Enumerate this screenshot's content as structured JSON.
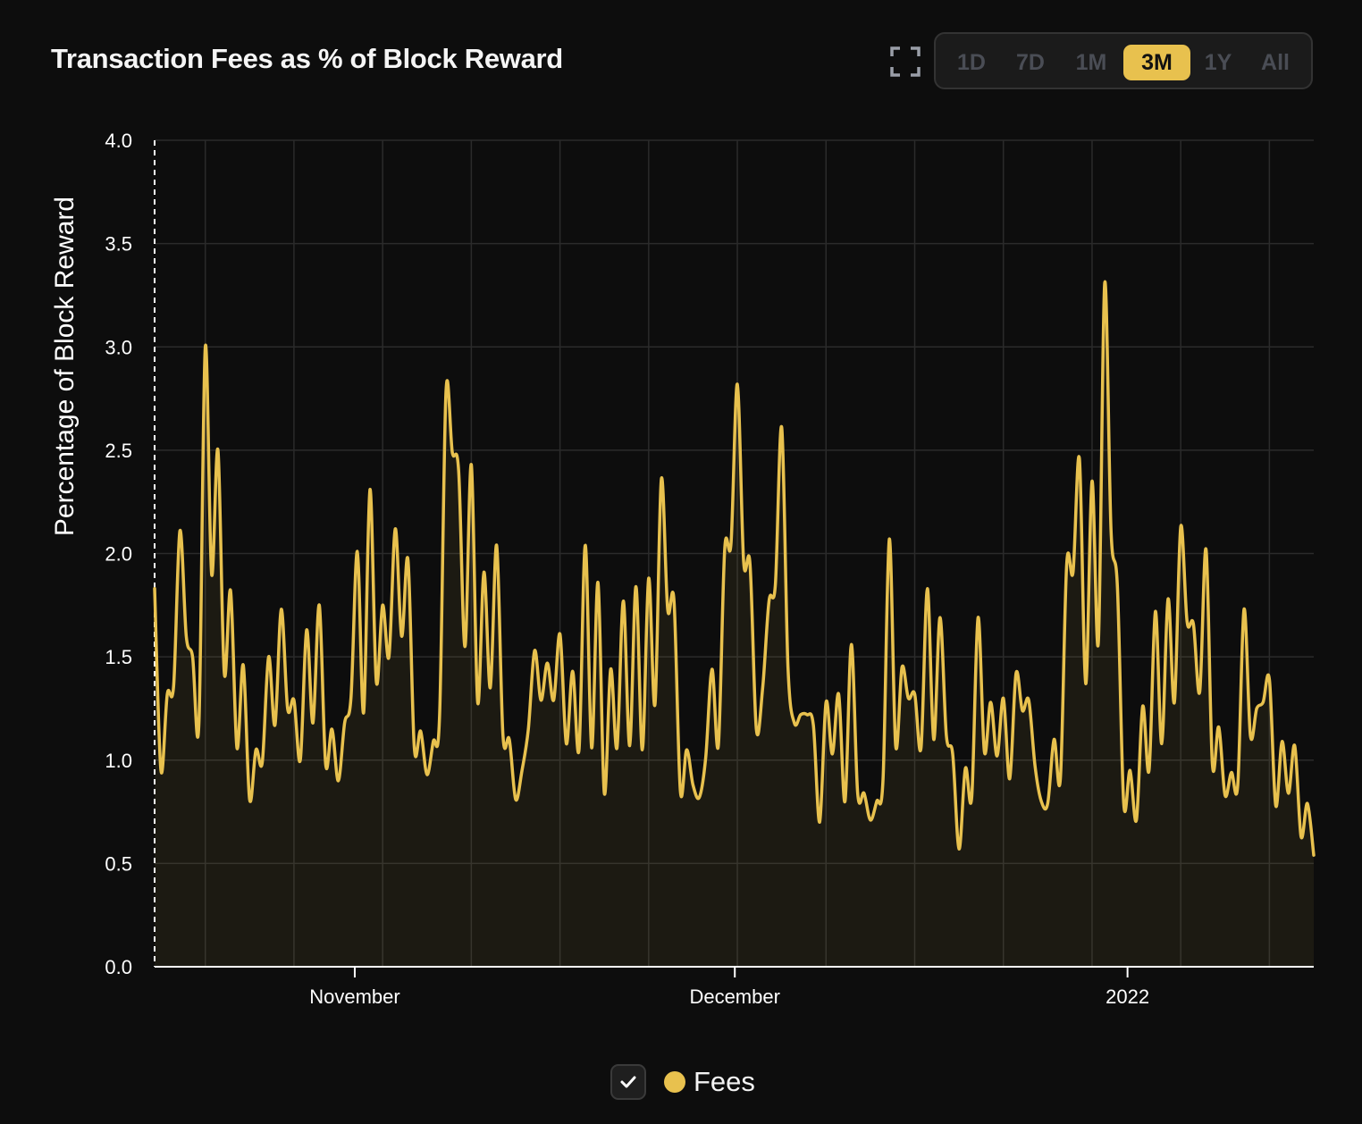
{
  "header": {
    "title": "Transaction Fees as % of Block Reward",
    "expand_icon": "expand-icon"
  },
  "range_buttons": [
    {
      "label": "1D",
      "active": false
    },
    {
      "label": "7D",
      "active": false
    },
    {
      "label": "1M",
      "active": false
    },
    {
      "label": "3M",
      "active": true
    },
    {
      "label": "1Y",
      "active": false
    },
    {
      "label": "All",
      "active": false
    }
  ],
  "colors": {
    "background": "#0d0d0d",
    "accent": "#e8c14e",
    "grid": "#2b2b2b",
    "axis": "#ffffff",
    "inactive_text": "#4a4d55"
  },
  "legend": {
    "check_icon": "check-icon",
    "series_label": "Fees"
  },
  "chart_data": {
    "type": "area",
    "title": "Transaction Fees as % of Block Reward",
    "xlabel": "",
    "ylabel": "Percentage of Block Reward",
    "ylim": [
      0,
      4
    ],
    "yticks": [
      "0.0",
      "0.5",
      "1.0",
      "1.5",
      "2.0",
      "2.5",
      "3.0",
      "3.5",
      "4.0"
    ],
    "x_range_days": [
      0,
      91.5
    ],
    "xticks": [
      {
        "label": "November",
        "day": 15.8
      },
      {
        "label": "December",
        "day": 45.8
      },
      {
        "label": "2022",
        "day": 76.8
      }
    ],
    "grid": true,
    "legend": "bottom-center",
    "series": [
      {
        "name": "Fees",
        "x_unit": "days since first sample",
        "x": [
          0,
          0.5,
          1,
          1.5,
          2,
          2.5,
          3,
          3.5,
          4,
          4.5,
          5,
          5.5,
          6,
          6.5,
          7,
          7.5,
          8,
          8.5,
          9,
          9.5,
          10,
          10.5,
          11,
          11.5,
          12,
          12.5,
          13,
          13.5,
          14,
          14.5,
          15,
          15.5,
          16,
          16.5,
          17,
          17.5,
          18,
          18.5,
          19,
          19.5,
          20,
          20.5,
          21,
          21.5,
          22,
          22.5,
          23,
          23.5,
          24,
          24.5,
          25,
          25.5,
          26,
          26.5,
          27,
          27.5,
          28,
          28.5,
          29,
          29.5,
          30,
          30.5,
          31,
          31.5,
          32,
          32.5,
          33,
          33.5,
          34,
          34.5,
          35,
          35.5,
          36,
          36.5,
          37,
          37.5,
          38,
          38.5,
          39,
          39.5,
          40,
          40.5,
          41,
          41.5,
          42,
          42.5,
          43,
          43.5,
          44,
          44.5,
          45,
          45.5,
          46,
          46.5,
          47,
          47.5,
          48,
          48.5,
          49,
          49.5,
          50,
          50.5,
          51,
          51.5,
          52,
          52.5,
          53,
          53.5,
          54,
          54.5,
          55,
          55.5,
          56,
          56.5,
          57,
          57.5,
          58,
          58.5,
          59,
          59.5,
          60,
          60.5,
          61,
          61.5,
          62,
          62.5,
          63,
          63.5,
          64,
          64.5,
          65,
          65.5,
          66,
          66.5,
          67,
          67.5,
          68,
          68.5,
          69,
          69.5,
          70,
          70.5,
          71,
          71.5,
          72,
          72.5,
          73,
          73.5,
          74,
          74.5,
          75,
          75.5,
          76,
          76.5,
          77,
          77.5,
          78,
          78.5,
          79,
          79.5,
          80,
          80.5,
          81,
          81.5,
          82,
          82.5,
          83,
          83.5,
          84,
          84.5,
          85,
          85.5,
          86,
          86.5,
          87,
          87.5,
          88,
          88.5,
          89,
          89.5,
          90,
          90.5,
          91,
          91.5
        ],
        "y": [
          1.83,
          0.95,
          1.32,
          1.36,
          2.11,
          1.6,
          1.5,
          1.18,
          3.0,
          1.9,
          2.5,
          1.42,
          1.82,
          1.06,
          1.46,
          0.81,
          1.05,
          0.99,
          1.5,
          1.17,
          1.73,
          1.25,
          1.29,
          1.0,
          1.63,
          1.18,
          1.75,
          0.98,
          1.15,
          0.9,
          1.18,
          1.3,
          2.01,
          1.23,
          2.31,
          1.38,
          1.75,
          1.5,
          2.12,
          1.6,
          1.97,
          1.06,
          1.14,
          0.93,
          1.09,
          1.22,
          2.78,
          2.49,
          2.4,
          1.55,
          2.43,
          1.28,
          1.91,
          1.35,
          2.04,
          1.12,
          1.1,
          0.81,
          0.95,
          1.15,
          1.53,
          1.29,
          1.47,
          1.29,
          1.61,
          1.08,
          1.43,
          1.05,
          2.04,
          1.06,
          1.86,
          0.84,
          1.44,
          1.06,
          1.77,
          1.07,
          1.84,
          1.05,
          1.88,
          1.27,
          2.36,
          1.73,
          1.77,
          0.85,
          1.05,
          0.88,
          0.82,
          1.01,
          1.44,
          1.07,
          2.02,
          2.05,
          2.82,
          1.96,
          1.95,
          1.15,
          1.35,
          1.77,
          1.85,
          2.61,
          1.45,
          1.18,
          1.22,
          1.22,
          1.17,
          0.7,
          1.28,
          1.03,
          1.32,
          0.8,
          1.56,
          0.84,
          0.84,
          0.71,
          0.8,
          0.91,
          2.07,
          1.07,
          1.45,
          1.3,
          1.32,
          1.06,
          1.83,
          1.1,
          1.69,
          1.12,
          1.03,
          0.57,
          0.96,
          0.82,
          1.69,
          1.04,
          1.28,
          1.02,
          1.3,
          0.91,
          1.42,
          1.24,
          1.29,
          0.97,
          0.8,
          0.79,
          1.1,
          0.91,
          1.95,
          1.91,
          2.46,
          1.37,
          2.35,
          1.57,
          3.31,
          2.11,
          1.84,
          0.79,
          0.95,
          0.71,
          1.26,
          0.95,
          1.72,
          1.08,
          1.78,
          1.28,
          2.13,
          1.67,
          1.66,
          1.33,
          2.02,
          0.98,
          1.16,
          0.83,
          0.94,
          0.88,
          1.73,
          1.12,
          1.25,
          1.28,
          1.39,
          0.78,
          1.09,
          0.84,
          1.07,
          0.63,
          0.79,
          0.54
        ]
      }
    ]
  }
}
